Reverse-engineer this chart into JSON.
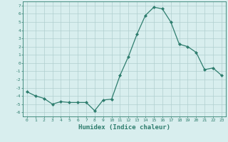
{
  "x": [
    0,
    1,
    2,
    3,
    4,
    5,
    6,
    7,
    8,
    9,
    10,
    11,
    12,
    13,
    14,
    15,
    16,
    17,
    18,
    19,
    20,
    21,
    22,
    23
  ],
  "y": [
    -3.5,
    -4.0,
    -4.3,
    -5.0,
    -4.7,
    -4.8,
    -4.8,
    -4.8,
    -5.8,
    -4.5,
    -4.4,
    -1.5,
    0.8,
    3.5,
    5.8,
    6.8,
    6.6,
    5.0,
    2.3,
    2.0,
    1.3,
    -0.8,
    -0.6,
    -1.5
  ],
  "line_color": "#2e7d6e",
  "marker": "D",
  "marker_size": 2.0,
  "bg_color": "#d8eeee",
  "grid_color": "#b0cfcf",
  "xlabel": "Humidex (Indice chaleur)",
  "xlabel_fontsize": 6.5,
  "xlim": [
    -0.5,
    23.5
  ],
  "ylim": [
    -6.5,
    7.5
  ],
  "yticks": [
    -6,
    -5,
    -4,
    -3,
    -2,
    -1,
    0,
    1,
    2,
    3,
    4,
    5,
    6,
    7
  ],
  "xticks": [
    0,
    1,
    2,
    3,
    4,
    5,
    6,
    7,
    8,
    9,
    10,
    11,
    12,
    13,
    14,
    15,
    16,
    17,
    18,
    19,
    20,
    21,
    22,
    23
  ]
}
